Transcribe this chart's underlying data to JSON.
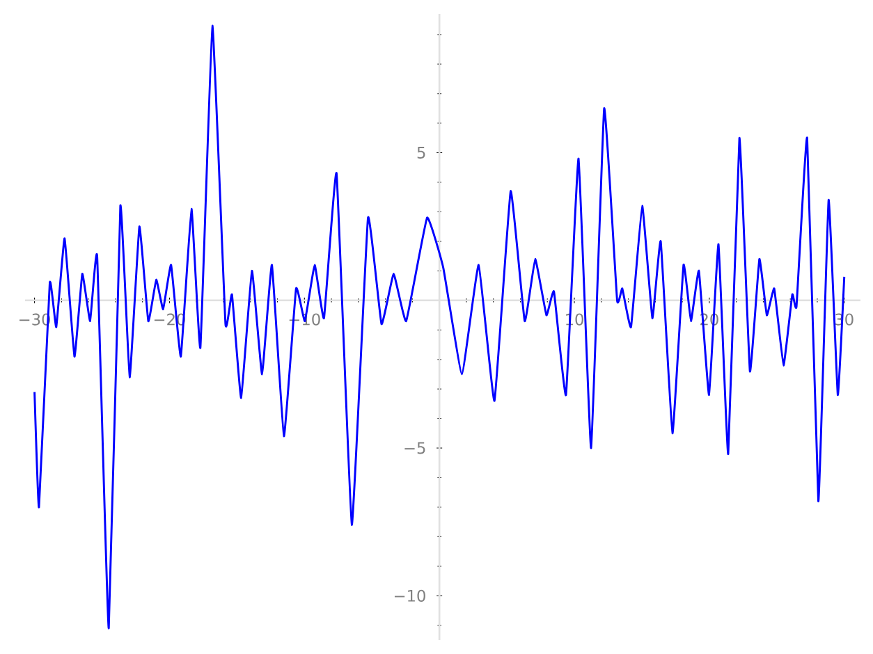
{
  "chart_data": {
    "type": "line",
    "xlim": [
      -30.7,
      31.2
    ],
    "ylim": [
      -11.5,
      9.7
    ],
    "xticks": [
      {
        "value": -30,
        "label": "−30"
      },
      {
        "value": -28,
        "label": null
      },
      {
        "value": -26,
        "label": null
      },
      {
        "value": -24,
        "label": null
      },
      {
        "value": -22,
        "label": null
      },
      {
        "value": -20,
        "label": "−20"
      },
      {
        "value": -18,
        "label": null
      },
      {
        "value": -16,
        "label": null
      },
      {
        "value": -14,
        "label": null
      },
      {
        "value": -12,
        "label": null
      },
      {
        "value": -10,
        "label": "−10"
      },
      {
        "value": -8,
        "label": null
      },
      {
        "value": -6,
        "label": null
      },
      {
        "value": -4,
        "label": null
      },
      {
        "value": -2,
        "label": null
      },
      {
        "value": 2,
        "label": null
      },
      {
        "value": 4,
        "label": null
      },
      {
        "value": 6,
        "label": null
      },
      {
        "value": 8,
        "label": null
      },
      10,
      {
        "value": 12,
        "label": null
      },
      {
        "value": 14,
        "label": null
      },
      {
        "value": 16,
        "label": null
      },
      {
        "value": 18,
        "label": null
      },
      20,
      {
        "value": 22,
        "label": null
      },
      {
        "value": 24,
        "label": null
      },
      {
        "value": 26,
        "label": null
      },
      {
        "value": 28,
        "label": null
      },
      30
    ],
    "yticks": [
      {
        "value": -11,
        "label": null
      },
      {
        "value": -10,
        "label": "−10"
      },
      {
        "value": -9,
        "label": null
      },
      {
        "value": -8,
        "label": null
      },
      {
        "value": -7,
        "label": null
      },
      {
        "value": -6,
        "label": null
      },
      {
        "value": -5,
        "label": "−5"
      },
      {
        "value": -4,
        "label": null
      },
      {
        "value": -3,
        "label": null
      },
      {
        "value": -2,
        "label": null
      },
      {
        "value": -1,
        "label": null
      },
      {
        "value": 1,
        "label": null
      },
      {
        "value": 2,
        "label": null
      },
      {
        "value": 3,
        "label": null
      },
      {
        "value": 4,
        "label": null
      },
      5,
      {
        "value": 6,
        "label": null
      },
      {
        "value": 7,
        "label": null
      },
      {
        "value": 8,
        "label": null
      },
      {
        "value": 9,
        "label": null
      }
    ],
    "series": [
      {
        "color": "#0000ff",
        "x": [
          -30,
          -29.67,
          -28.87,
          -28.39,
          -27.77,
          -27.04,
          -26.46,
          -25.88,
          -25.36,
          -24.5,
          -23.64,
          -22.95,
          -22.23,
          -21.57,
          -20.98,
          -20.47,
          -19.88,
          -19.16,
          -18.37,
          -17.71,
          -16.82,
          -15.85,
          -15.37,
          -14.69,
          -13.89,
          -13.14,
          -12.41,
          -11.52,
          -10.62,
          -9.97,
          -9.24,
          -8.55,
          -7.62,
          -6.49,
          -5.29,
          -4.29,
          -3.39,
          -2.46,
          -0.91,
          0.29,
          1.67,
          2.91,
          4.08,
          5.28,
          6.32,
          7.1,
          7.93,
          8.49,
          9.38,
          10.31,
          11.24,
          12.21,
          13.17,
          13.55,
          14.2,
          15.03,
          15.78,
          16.4,
          17.27,
          18.09,
          18.64,
          19.23,
          19.98,
          20.68,
          21.4,
          22.23,
          23.01,
          23.71,
          24.26,
          24.81,
          25.5,
          26.15,
          26.46,
          27.25,
          28.08,
          28.84,
          29.52,
          30
        ],
        "values": [
          -3.1,
          -7.0,
          0.6,
          -0.9,
          2.1,
          -1.9,
          0.9,
          -0.7,
          1.5,
          -11.1,
          3.2,
          -2.6,
          2.5,
          -0.7,
          0.7,
          -0.3,
          1.2,
          -1.9,
          3.1,
          -1.6,
          9.3,
          -0.8,
          0.2,
          -3.3,
          1.0,
          -2.5,
          1.2,
          -4.6,
          0.4,
          -0.7,
          1.2,
          -0.6,
          4.3,
          -7.6,
          2.8,
          -0.8,
          0.9,
          -0.7,
          2.8,
          1.1,
          -2.5,
          1.2,
          -3.4,
          3.7,
          -0.7,
          1.4,
          -0.5,
          0.3,
          -3.2,
          4.8,
          -5.0,
          6.5,
          0.0,
          0.4,
          -0.9,
          3.2,
          -0.6,
          2.0,
          -4.5,
          1.2,
          -0.7,
          1.0,
          -3.2,
          1.9,
          -5.2,
          5.5,
          -2.4,
          1.4,
          -0.5,
          0.4,
          -2.2,
          0.2,
          -0.2,
          5.5,
          -6.8,
          3.4,
          -3.2,
          0.8
        ]
      }
    ]
  }
}
